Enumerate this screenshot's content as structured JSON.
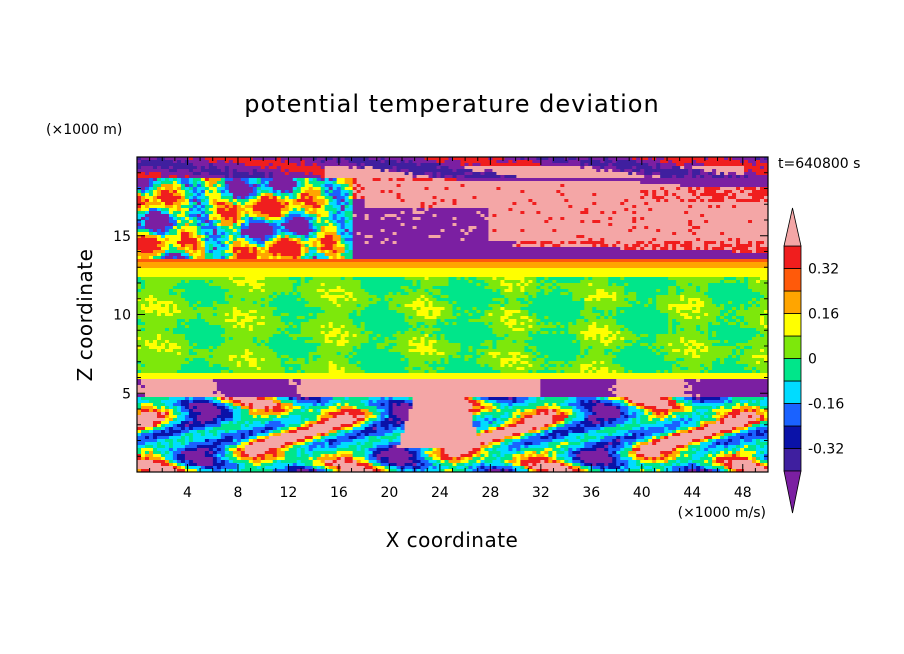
{
  "chart_data": {
    "type": "heatmap",
    "title": "potential temperature deviation",
    "xlabel": "X coordinate",
    "ylabel": "Z coordinate",
    "x_unit": "(×1000 m/s)",
    "y_unit": "(×1000 m)",
    "time_label": "t=640800 s",
    "xlim": [
      0,
      50
    ],
    "ylim": [
      0,
      20
    ],
    "x_ticks": [
      "4",
      "8",
      "12",
      "16",
      "20",
      "24",
      "28",
      "32",
      "36",
      "40",
      "44",
      "48"
    ],
    "y_ticks": [
      "5",
      "10",
      "15"
    ],
    "colorbar": {
      "levels": [
        -0.4,
        -0.32,
        -0.24,
        -0.16,
        -0.08,
        0,
        0.08,
        0.16,
        0.24,
        0.32,
        0.4
      ],
      "labels": [
        "-0.32",
        "-0.16",
        "0",
        "0.16",
        "0.32"
      ],
      "label_values": [
        -0.32,
        -0.16,
        0,
        0.16,
        0.32
      ],
      "colors": [
        "#7b1fa2",
        "#3f1f9f",
        "#0a12a8",
        "#1a62ff",
        "#00dcff",
        "#00e68a",
        "#7de80b",
        "#ffff00",
        "#ffa500",
        "#ff5a0a",
        "#f01e1e",
        "#f4a6a6"
      ],
      "extend": "both"
    },
    "layers": [
      {
        "z_range": [
          18.5,
          20
        ],
        "dominant": "mixed purple / salmon",
        "approx_value": "< -0.40 and > 0.40"
      },
      {
        "z_range": [
          13.5,
          18.5
        ],
        "dominant": "salmon band in upper right, purple bands, noisy mix at left",
        "approx_value": "±0.40"
      },
      {
        "z_range": [
          13,
          13.7
        ],
        "dominant": "orange-red thin band",
        "approx_value": 0.3
      },
      {
        "z_range": [
          6.2,
          12.8
        ],
        "dominant": "green",
        "approx_value": 0.02
      },
      {
        "z_range": [
          5.8,
          6.2
        ],
        "dominant": "yellow thin line",
        "approx_value": 0.16
      },
      {
        "z_range": [
          4.8,
          5.8
        ],
        "dominant": "salmon / purple blobs",
        "approx_value": "±0.40"
      },
      {
        "z_range": [
          0,
          4.8
        ],
        "dominant": "turbulent eddies (green, cyan, red, blue)",
        "approx_value": "-0.40 to 0.40"
      }
    ]
  }
}
